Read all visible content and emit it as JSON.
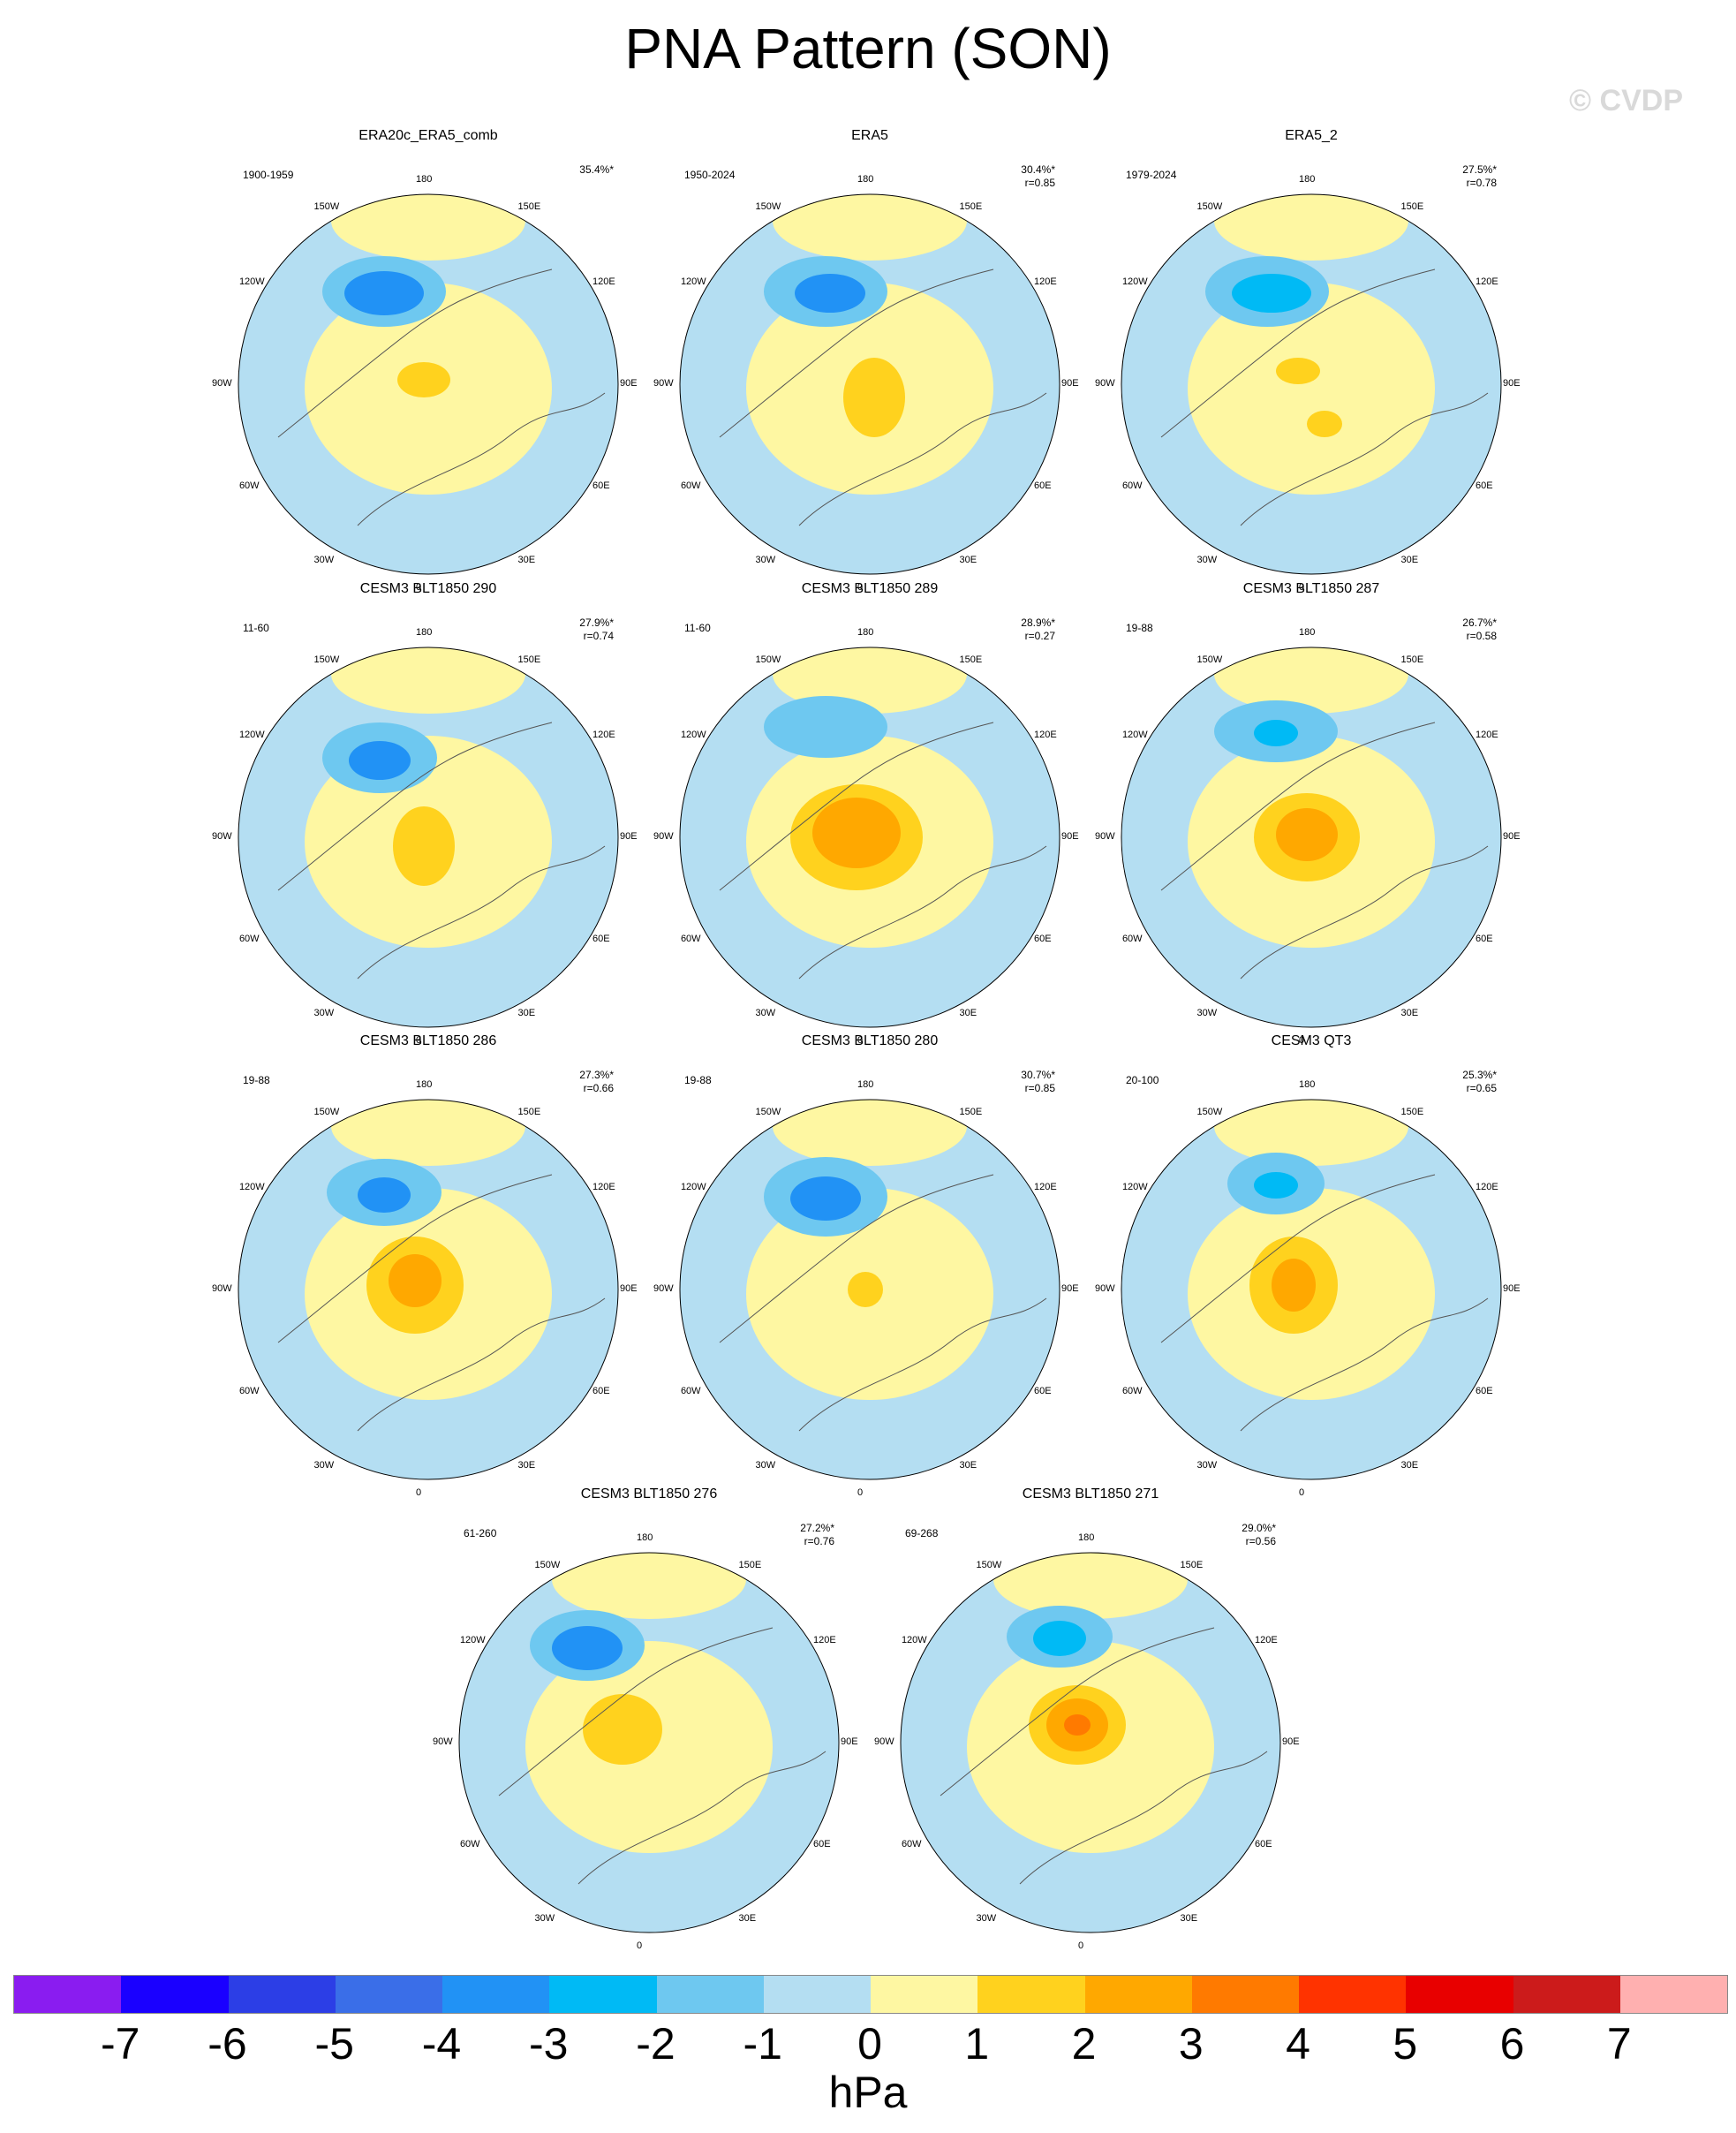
{
  "title": "PNA Pattern (SON)",
  "watermark": "© CVDP",
  "lon_labels": [
    "180",
    "150E",
    "120E",
    "90E",
    "60E",
    "30E",
    "0",
    "30W",
    "60W",
    "90W",
    "120W",
    "150W"
  ],
  "panels": [
    {
      "name": "ERA20c_ERA5_comb",
      "years": "1900-1959",
      "pct": "35.4%*",
      "r": ""
    },
    {
      "name": "ERA5",
      "years": "1950-2024",
      "pct": "30.4%*",
      "r": "r=0.85"
    },
    {
      "name": "ERA5_2",
      "years": "1979-2024",
      "pct": "27.5%*",
      "r": "r=0.78"
    },
    {
      "name": "CESM3 BLT1850 290",
      "years": "11-60",
      "pct": "27.9%*",
      "r": "r=0.74"
    },
    {
      "name": "CESM3 BLT1850 289",
      "years": "11-60",
      "pct": "28.9%*",
      "r": "r=0.27"
    },
    {
      "name": "CESM3 BLT1850 287",
      "years": "19-88",
      "pct": "26.7%*",
      "r": "r=0.58"
    },
    {
      "name": "CESM3 BLT1850 286",
      "years": "19-88",
      "pct": "27.3%*",
      "r": "r=0.66"
    },
    {
      "name": "CESM3 BLT1850 280",
      "years": "19-88",
      "pct": "30.7%*",
      "r": "r=0.85"
    },
    {
      "name": "CESM3 QT3",
      "years": "20-100",
      "pct": "25.3%*",
      "r": "r=0.65"
    },
    {
      "name": "CESM3 BLT1850 276",
      "years": "61-260",
      "pct": "27.2%*",
      "r": "r=0.76"
    },
    {
      "name": "CESM3 BLT1850 271",
      "years": "69-268",
      "pct": "29.0%*",
      "r": "r=0.56"
    }
  ],
  "colorbar": {
    "colors": [
      "#8a1cf0",
      "#1a00ff",
      "#2c3ee6",
      "#3a6ee8",
      "#2192f5",
      "#00baf5",
      "#6ec8f0",
      "#b4def2",
      "#fef7a2",
      "#ffd21e",
      "#ffa800",
      "#ff7a00",
      "#ff3300",
      "#e80000",
      "#cc1b1b",
      "#ffb0b0"
    ],
    "ticks": [
      "-7",
      "-6",
      "-5",
      "-4",
      "-3",
      "-2",
      "-1",
      "0",
      "1",
      "2",
      "3",
      "4",
      "5",
      "6",
      "7"
    ],
    "unit": "hPa"
  }
}
